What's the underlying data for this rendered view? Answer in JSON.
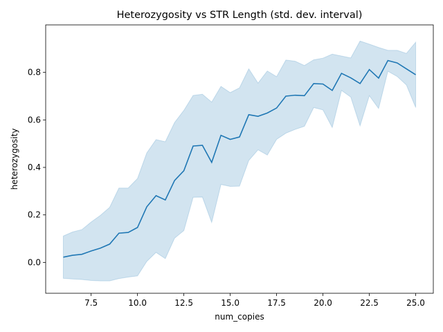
{
  "chart_data": {
    "type": "line",
    "title": "Heterozygosity vs STR Length (std. dev. interval)",
    "xlabel": "num_copies",
    "ylabel": "heterozygosity",
    "xlim": [
      5.05,
      25.95
    ],
    "ylim": [
      -0.13,
      1.0
    ],
    "xticks": [
      7.5,
      10.0,
      12.5,
      15.0,
      17.5,
      20.0,
      22.5,
      25.0
    ],
    "xtick_labels": [
      "7.5",
      "10.0",
      "12.5",
      "15.0",
      "17.5",
      "20.0",
      "22.5",
      "25.0"
    ],
    "yticks": [
      0.0,
      0.2,
      0.4,
      0.6,
      0.8
    ],
    "ytick_labels": [
      "0.0",
      "0.2",
      "0.4",
      "0.6",
      "0.8"
    ],
    "grid": false,
    "legend": "none",
    "line_color": "#1f77b4",
    "band_color": "#1f77b4",
    "series": [
      {
        "x": [
          6.0,
          6.5,
          7.0,
          7.5,
          8.0,
          8.5,
          9.0,
          9.5,
          10.0,
          10.5,
          11.0,
          11.5,
          12.0,
          12.5,
          13.0,
          13.5,
          14.0,
          14.5,
          15.0,
          15.5,
          16.0,
          16.5,
          17.0,
          17.5,
          18.0,
          18.5,
          19.0,
          19.5,
          20.0,
          20.5,
          21.0,
          21.5,
          22.0,
          22.5,
          23.0,
          23.5,
          24.0,
          24.5,
          25.0
        ],
        "y": [
          0.022,
          0.03,
          0.034,
          0.048,
          0.06,
          0.077,
          0.123,
          0.126,
          0.147,
          0.234,
          0.281,
          0.263,
          0.345,
          0.386,
          0.49,
          0.493,
          0.421,
          0.535,
          0.518,
          0.528,
          0.622,
          0.615,
          0.629,
          0.65,
          0.7,
          0.704,
          0.702,
          0.753,
          0.751,
          0.724,
          0.796,
          0.777,
          0.753,
          0.812,
          0.776,
          0.85,
          0.84,
          0.815,
          0.79
        ],
        "lower": [
          -0.067,
          -0.07,
          -0.072,
          -0.076,
          -0.078,
          -0.078,
          -0.068,
          -0.062,
          -0.057,
          0.004,
          0.042,
          0.016,
          0.102,
          0.134,
          0.274,
          0.275,
          0.168,
          0.328,
          0.32,
          0.321,
          0.429,
          0.474,
          0.452,
          0.518,
          0.544,
          0.56,
          0.573,
          0.652,
          0.642,
          0.568,
          0.724,
          0.696,
          0.575,
          0.702,
          0.648,
          0.805,
          0.783,
          0.747,
          0.652
        ],
        "upper": [
          0.111,
          0.128,
          0.138,
          0.17,
          0.198,
          0.232,
          0.313,
          0.313,
          0.353,
          0.461,
          0.517,
          0.508,
          0.589,
          0.64,
          0.703,
          0.708,
          0.675,
          0.741,
          0.715,
          0.735,
          0.815,
          0.755,
          0.806,
          0.782,
          0.852,
          0.847,
          0.829,
          0.853,
          0.86,
          0.877,
          0.869,
          0.861,
          0.932,
          0.919,
          0.905,
          0.893,
          0.893,
          0.88,
          0.927
        ]
      }
    ]
  }
}
